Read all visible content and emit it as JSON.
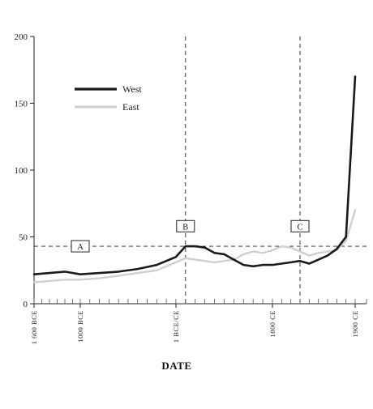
{
  "chart_data": {
    "type": "line",
    "xlabel": "DATE",
    "ylabel": "",
    "ylim": [
      0,
      200
    ],
    "xlim": [
      -1600,
      2000
    ],
    "y_ticks": [
      0,
      50,
      100,
      150,
      200
    ],
    "x_ticks": [
      {
        "value": -1600,
        "label": "1 600 BCE"
      },
      {
        "value": -1000,
        "label": "1000 BCE"
      },
      {
        "value": 1,
        "label": "1 BCE/CE"
      },
      {
        "value": 1000,
        "label": "1000 CE"
      },
      {
        "value": 1900,
        "label": "1900 CE"
      }
    ],
    "legend_position": "top-left",
    "series": [
      {
        "name": "West",
        "color": "#1a1a1a",
        "x": [
          -1600,
          -1400,
          -1200,
          -1000,
          -800,
          -600,
          -400,
          -200,
          -100,
          0,
          100,
          200,
          300,
          400,
          500,
          600,
          700,
          800,
          900,
          1000,
          1100,
          1200,
          1300,
          1400,
          1500,
          1600,
          1700,
          1800,
          1900
        ],
        "values": [
          22,
          23,
          24,
          22,
          23,
          24,
          26,
          29,
          32,
          35,
          43,
          43,
          42,
          38,
          37,
          33,
          29,
          28,
          29,
          29,
          30,
          31,
          32,
          30,
          33,
          36,
          41,
          50,
          170
        ]
      },
      {
        "name": "East",
        "color": "#cfcfcf",
        "x": [
          -1600,
          -1400,
          -1200,
          -1000,
          -800,
          -600,
          -400,
          -200,
          -100,
          0,
          100,
          200,
          300,
          400,
          500,
          600,
          700,
          800,
          900,
          1000,
          1100,
          1200,
          1300,
          1400,
          1500,
          1600,
          1700,
          1800,
          1900
        ],
        "values": [
          16,
          17,
          18,
          18,
          19,
          21,
          23,
          25,
          28,
          31,
          34,
          33,
          32,
          31,
          32,
          33,
          37,
          39,
          38,
          40,
          43,
          42,
          39,
          36,
          38,
          39,
          40,
          47,
          70
        ]
      }
    ],
    "reference_lines": [
      {
        "orientation": "horizontal",
        "value": 43,
        "label": "A"
      },
      {
        "orientation": "vertical",
        "value": 100,
        "label": "B"
      },
      {
        "orientation": "vertical",
        "value": 1300,
        "label": "C"
      }
    ]
  }
}
